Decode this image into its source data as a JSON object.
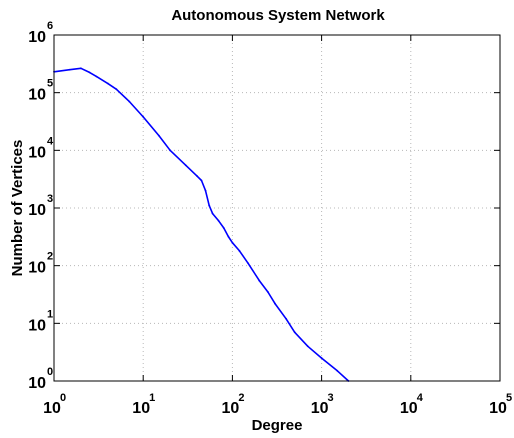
{
  "chart_data": {
    "type": "line",
    "title": "Autonomous System Network",
    "xlabel": "Degree",
    "ylabel": "Number of Vertices",
    "x_scale": "log",
    "y_scale": "log",
    "xlim": [
      1,
      100000
    ],
    "ylim": [
      1,
      1000000
    ],
    "grid": true,
    "tick_base": "10",
    "x_tick_exponents": [
      "0",
      "1",
      "2",
      "3",
      "4",
      "5"
    ],
    "y_tick_exponents": [
      "0",
      "1",
      "2",
      "3",
      "4",
      "5",
      "6"
    ],
    "colors": {
      "series": "#0000ff",
      "grid": "#b8b8b8"
    },
    "series": [
      {
        "x": [
          1,
          1.5,
          2,
          2.5,
          3,
          4,
          5,
          7,
          10,
          15,
          20,
          30,
          40,
          45,
          50,
          55,
          60,
          70,
          80,
          90,
          100,
          120,
          150,
          200,
          250,
          300,
          400,
          500,
          700,
          1000,
          1500,
          2000
        ],
        "y": [
          230000,
          250000,
          265000,
          225000,
          190000,
          145000,
          115000,
          70000,
          38000,
          18000,
          10000,
          5500,
          3600,
          3000,
          2000,
          1100,
          800,
          600,
          450,
          320,
          250,
          180,
          110,
          55,
          35,
          22,
          12,
          7,
          4,
          2.5,
          1.5,
          1
        ]
      }
    ]
  }
}
